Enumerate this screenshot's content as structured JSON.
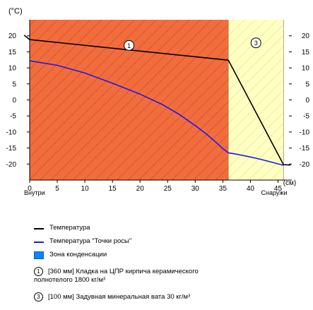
{
  "chart_data": {
    "type": "line",
    "y_unit": "(°C)",
    "x_unit": "(см)",
    "xlim": [
      0,
      47.5
    ],
    "ylim": [
      -25,
      25
    ],
    "x_ticks": [
      0,
      5,
      10,
      15,
      20,
      25,
      30,
      35,
      40,
      45
    ],
    "y_ticks": [
      20,
      15,
      10,
      5,
      0,
      -5,
      -10,
      -15,
      -20
    ],
    "x_label_left": "Внутри",
    "x_label_right": "Снаружи",
    "layers": [
      {
        "marker": "1",
        "x_start": 0,
        "x_end": 36,
        "color": "#f26d3d",
        "hatch": "#c2401a"
      },
      {
        "marker": "3",
        "x_start": 36,
        "x_end": 46,
        "color": "#ffffc2",
        "hatch": "#d9d98f"
      }
    ],
    "series": [
      {
        "name": "Температура",
        "color": "#000000",
        "points": [
          [
            -1,
            20.2
          ],
          [
            0,
            18.8
          ],
          [
            36,
            12.4
          ],
          [
            46,
            -20.2
          ],
          [
            47.3,
            -20.3
          ]
        ]
      },
      {
        "name": "Температура \"Точки росы\"",
        "color": "#1a1ae6",
        "points": [
          [
            0,
            12.2
          ],
          [
            5,
            10.8
          ],
          [
            10,
            8.4
          ],
          [
            15,
            5.2
          ],
          [
            20,
            1.8
          ],
          [
            24,
            -1.4
          ],
          [
            27,
            -4.4
          ],
          [
            30,
            -8.0
          ],
          [
            32,
            -10.6
          ],
          [
            34,
            -13.6
          ],
          [
            35,
            -15.2
          ],
          [
            36,
            -16.5
          ],
          [
            38,
            -17.1
          ],
          [
            40,
            -17.8
          ],
          [
            42,
            -18.6
          ],
          [
            44,
            -19.5
          ],
          [
            46,
            -20.4
          ]
        ]
      }
    ]
  },
  "legend": {
    "temperature": "Температура",
    "dew_point": "Температура \"Точки росы\"",
    "condensation": "Зона конденсации",
    "layer1_num": "1",
    "layer1_text_line1": "[360 мм] Кладка на ЦПР кирпича керамического",
    "layer1_text_line2": "полнотелого 1800 кг/м³",
    "layer3_num": "3",
    "layer3_text": "[100 мм] Задувная минеральная вата 30 кг/м³"
  },
  "colors": {
    "condensation_zone": "#0a84ff",
    "temperature_line": "#000000",
    "dew_point_line": "#1a1ae6"
  }
}
